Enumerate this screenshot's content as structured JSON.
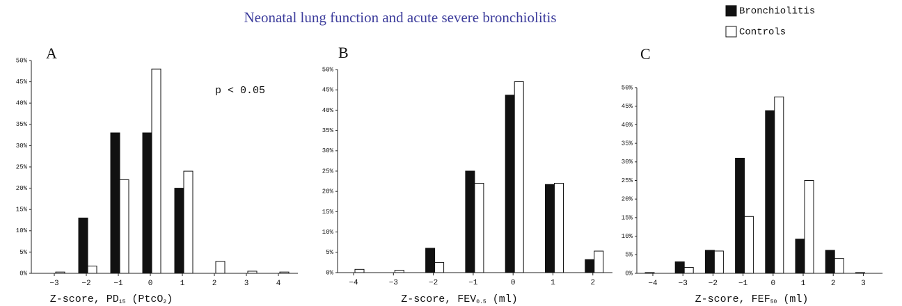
{
  "title": "Neonatal lung function and acute severe bronchiolitis",
  "chart_data": [
    {
      "type": "bar",
      "panel": "A",
      "annotation": "p < 0.05",
      "categories": [
        "−3",
        "−2",
        "−1",
        "0",
        "1",
        "2",
        "3",
        "4"
      ],
      "series": [
        {
          "name": "Bronchiolitis",
          "color": "#111111",
          "values": [
            0,
            13,
            33,
            33,
            20,
            0,
            0,
            0
          ]
        },
        {
          "name": "Controls",
          "color": "#ffffff",
          "values": [
            0.3,
            1.7,
            22,
            48,
            24,
            2.8,
            0.5,
            0.3
          ]
        }
      ],
      "xlabel": [
        {
          "text": "Z-score, PD"
        },
        {
          "text": "15",
          "sub": true
        },
        {
          "text": " (PtcO"
        },
        {
          "text": "2",
          "sub": true
        },
        {
          "text": ")"
        }
      ],
      "ylim": [
        0,
        50
      ],
      "yticks": [
        {
          "value": 0,
          "label": "0%"
        },
        {
          "value": 5,
          "label": "5%"
        },
        {
          "value": 10,
          "label": "10%"
        },
        {
          "value": 15,
          "label": "15%"
        },
        {
          "value": 20,
          "label": "20%"
        },
        {
          "value": 25,
          "label": "25%"
        },
        {
          "value": 30,
          "label": "30%"
        },
        {
          "value": 35,
          "label": "35%"
        },
        {
          "value": 40,
          "label": "40%"
        },
        {
          "value": 45,
          "label": "45%"
        },
        {
          "value": 50,
          "label": "50%"
        }
      ]
    },
    {
      "type": "bar",
      "panel": "B",
      "categories": [
        "−4",
        "−3",
        "−2",
        "−1",
        "0",
        "1",
        "2"
      ],
      "series": [
        {
          "name": "Bronchiolitis",
          "color": "#111111",
          "values": [
            0,
            0,
            6,
            25,
            43.7,
            21.7,
            3.2
          ]
        },
        {
          "name": "Controls",
          "color": "#ffffff",
          "values": [
            0.8,
            0.6,
            2.5,
            22,
            47,
            22,
            5.3
          ]
        }
      ],
      "xlabel": [
        {
          "text": "Z-score, FEV"
        },
        {
          "text": "0.5",
          "sub": true
        },
        {
          "text": " (ml)"
        }
      ],
      "ylim": [
        0,
        50
      ],
      "yticks": [
        {
          "value": 0,
          "label": "0%"
        },
        {
          "value": 5,
          "label": "5%"
        },
        {
          "value": 10,
          "label": "10%"
        },
        {
          "value": 15,
          "label": "15%"
        },
        {
          "value": 20,
          "label": "20%"
        },
        {
          "value": 25,
          "label": "25%"
        },
        {
          "value": 30,
          "label": "30%"
        },
        {
          "value": 35,
          "label": "35%"
        },
        {
          "value": 40,
          "label": "40%"
        },
        {
          "value": 45,
          "label": "45%"
        },
        {
          "value": 50,
          "label": "50%"
        }
      ]
    },
    {
      "type": "bar",
      "panel": "C",
      "categories": [
        "−4",
        "−3",
        "−2",
        "−1",
        "0",
        "1",
        "2",
        "3"
      ],
      "series": [
        {
          "name": "Bronchiolitis",
          "color": "#111111",
          "values": [
            0.2,
            3.1,
            6.2,
            31,
            43.8,
            9.2,
            6.2,
            0.2
          ]
        },
        {
          "name": "Controls",
          "color": "#ffffff",
          "values": [
            0,
            1.6,
            6,
            15.3,
            47.5,
            25,
            4,
            0
          ]
        }
      ],
      "xlabel": [
        {
          "text": "Z-score, FEF"
        },
        {
          "text": "50",
          "sub": true
        },
        {
          "text": " (ml)"
        }
      ],
      "ylim": [
        0,
        50
      ],
      "yticks": [
        {
          "value": 0,
          "label": "0%"
        },
        {
          "value": 5,
          "label": "5%"
        },
        {
          "value": 10,
          "label": "10%"
        },
        {
          "value": 15,
          "label": "15%"
        },
        {
          "value": 20,
          "label": "20%"
        },
        {
          "value": 25,
          "label": "25%"
        },
        {
          "value": 30,
          "label": "30%"
        },
        {
          "value": 35,
          "label": "35%"
        },
        {
          "value": 40,
          "label": "40%"
        },
        {
          "value": 45,
          "label": "45%"
        },
        {
          "value": 50,
          "label": "50%"
        }
      ]
    }
  ]
}
